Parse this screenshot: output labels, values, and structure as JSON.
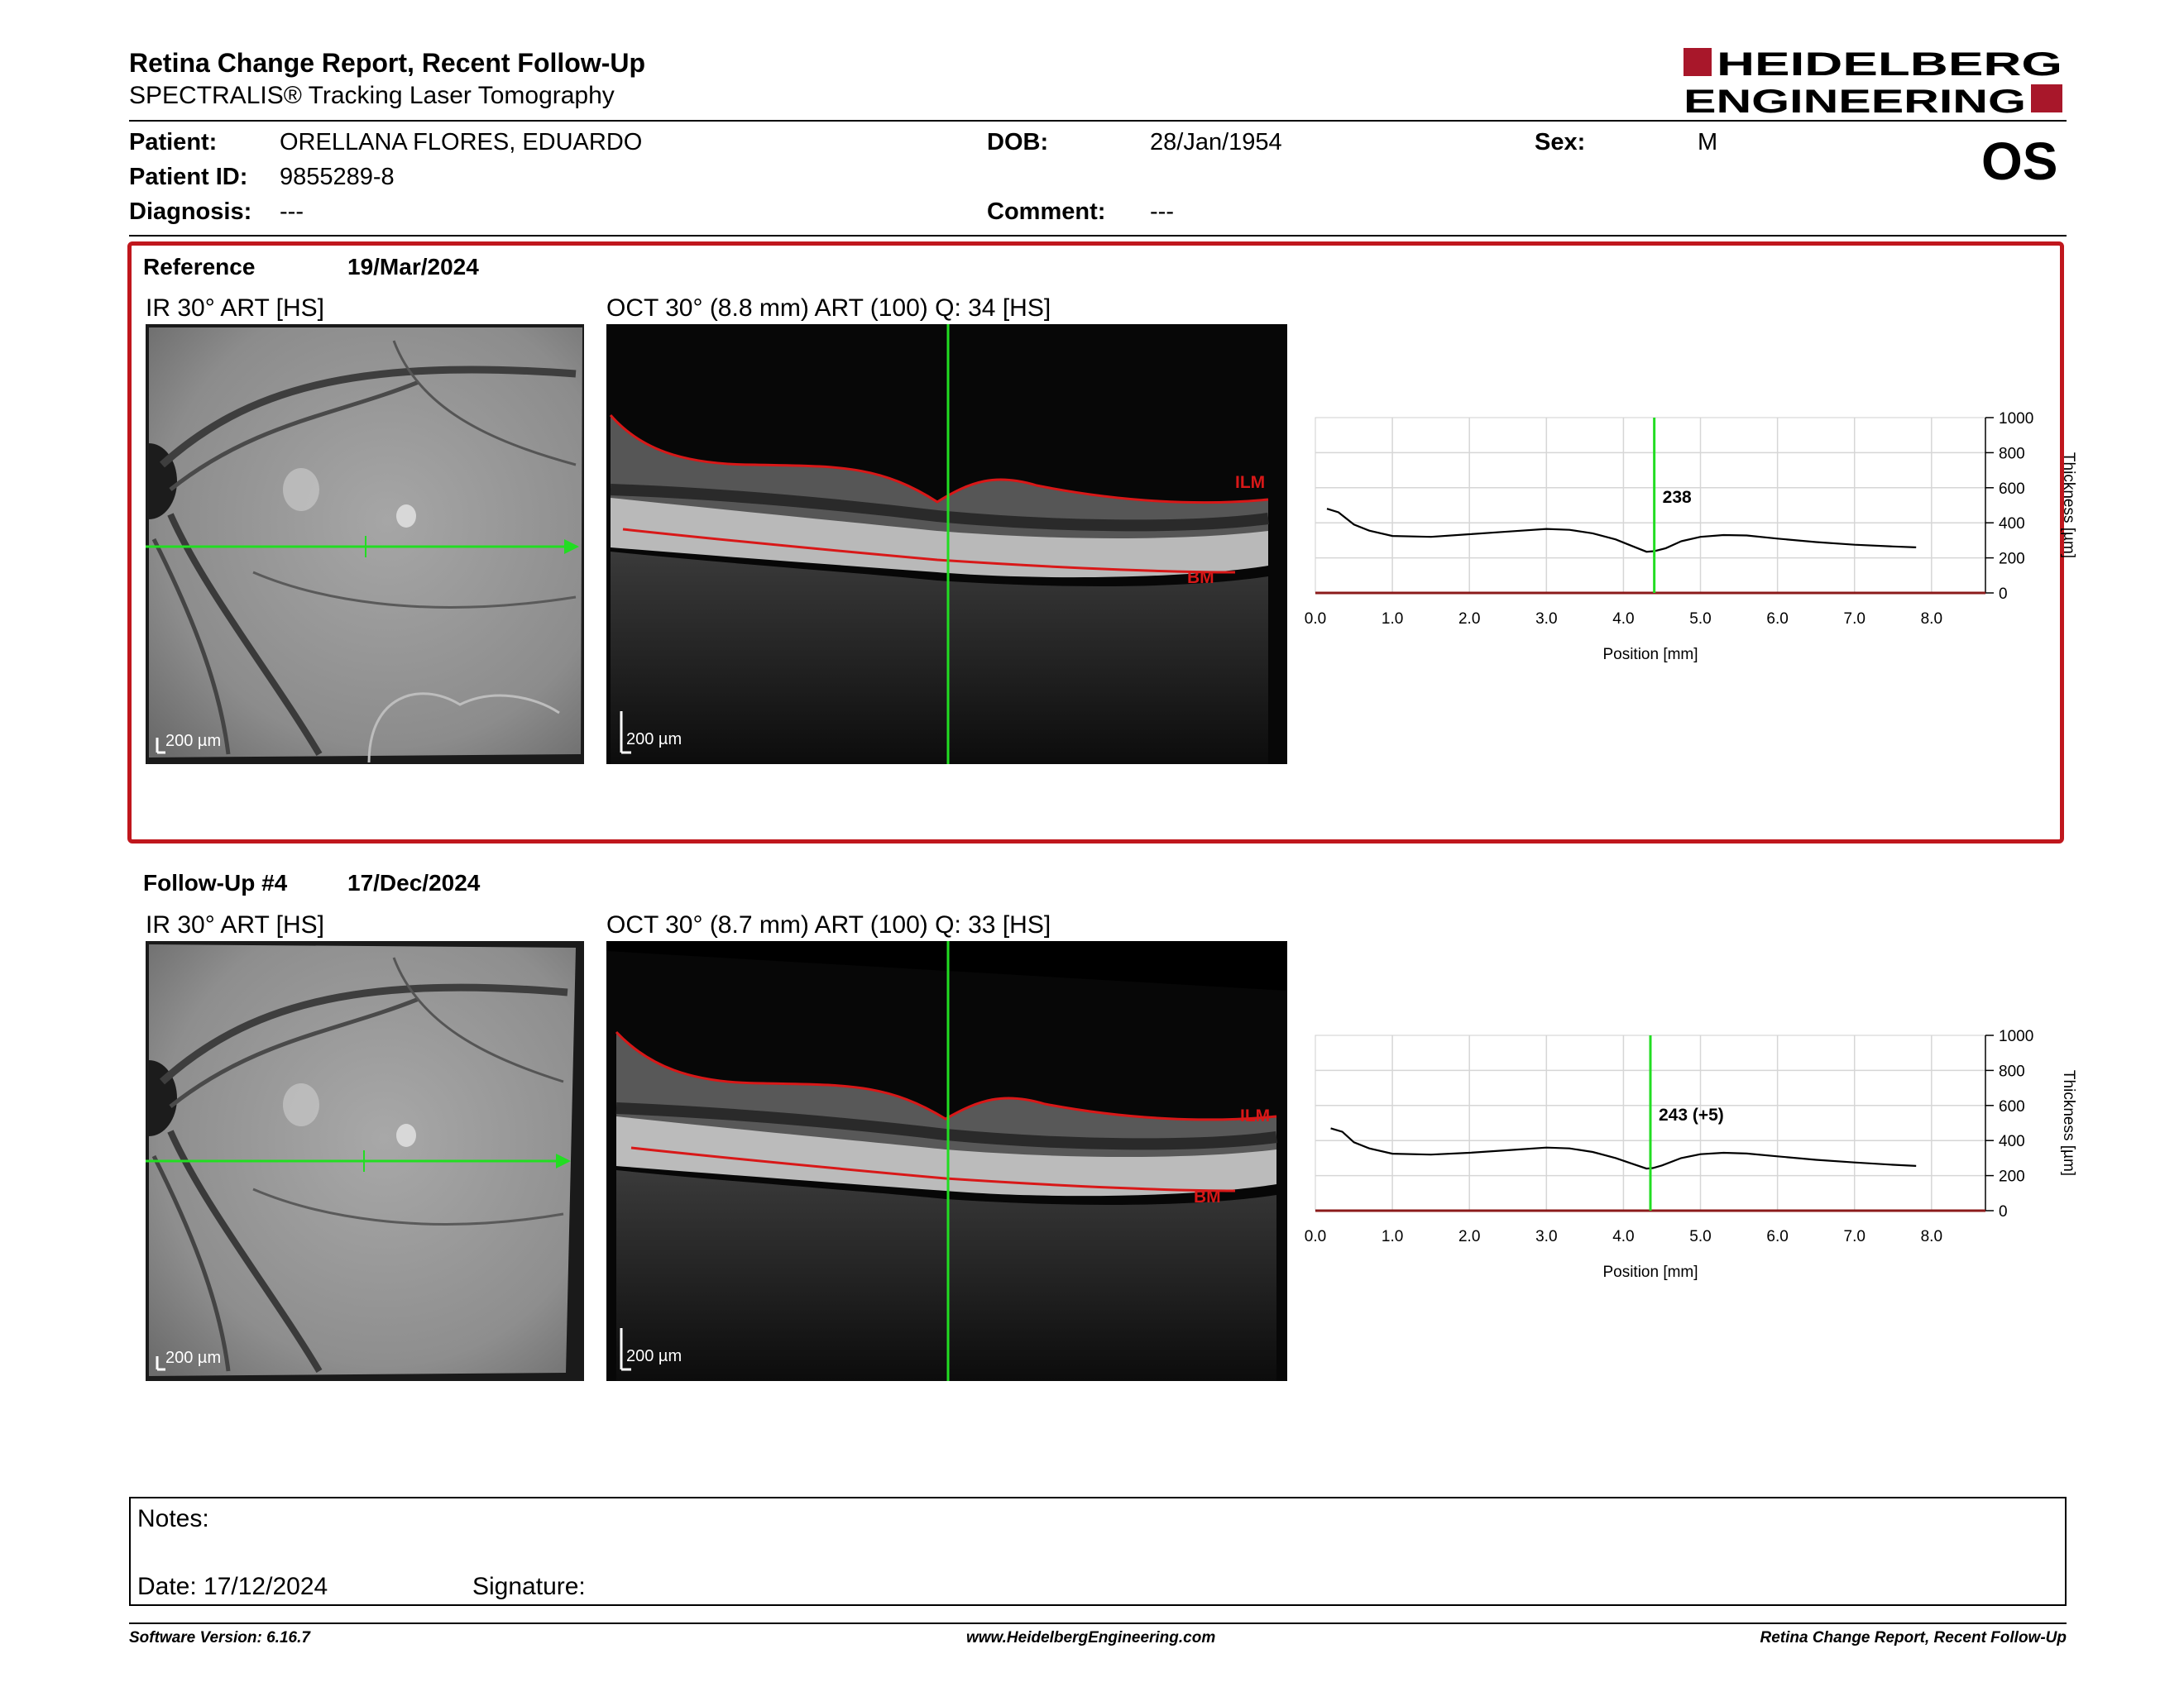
{
  "report": {
    "title": "Retina Change Report, Recent Follow-Up",
    "subtitle": "SPECTRALIS® Tracking Laser Tomography",
    "logo_line1": "HEIDELBERG",
    "logo_line2": "ENGINEERING",
    "eye": "OS"
  },
  "patient": {
    "patient_label": "Patient:",
    "patient_value": "ORELLANA FLORES, EDUARDO",
    "id_label": "Patient ID:",
    "id_value": "9855289-8",
    "diagnosis_label": "Diagnosis:",
    "diagnosis_value": "---",
    "dob_label": "DOB:",
    "dob_value": "28/Jan/1954",
    "comment_label": "Comment:",
    "comment_value": "---",
    "sex_label": "Sex:",
    "sex_value": "M"
  },
  "reference": {
    "label": "Reference",
    "date": "19/Mar/2024",
    "ir_label": "IR 30° ART [HS]",
    "oct_label": "OCT 30° (8.8 mm) ART (100) Q: 34 [HS]",
    "scale": "200 µm",
    "ilm": "ILM",
    "bm": "BM"
  },
  "followup": {
    "label": "Follow-Up #4",
    "date": "17/Dec/2024",
    "ir_label": "IR 30° ART [HS]",
    "oct_label": "OCT 30° (8.7 mm) ART (100) Q: 33 [HS]",
    "scale": "200 µm",
    "ilm": "ILM",
    "bm": "BM"
  },
  "notes": {
    "notes_label": "Notes:",
    "date_label": "Date: 17/12/2024",
    "signature_label": "Signature:"
  },
  "footer": {
    "software": "Software Version: 6.16.7",
    "website": "www.HeidelbergEngineering.com",
    "report_name": "Retina Change Report, Recent Follow-Up"
  },
  "colors": {
    "accent_red": "#c0171d",
    "cursor_green": "#22dd22",
    "segmentation_red": "#d81818"
  },
  "chart_data": [
    {
      "type": "line",
      "title": "",
      "xlabel": "Position [mm]",
      "ylabel": "Thickness [µm]",
      "xlim": [
        0,
        8.7
      ],
      "ylim": [
        0,
        1000
      ],
      "xticks": [
        "0.0",
        "1.0",
        "2.0",
        "3.0",
        "4.0",
        "5.0",
        "6.0",
        "7.0",
        "8.0"
      ],
      "yticks": [
        "0",
        "200",
        "400",
        "600",
        "800",
        "1000"
      ],
      "cursor_x": 4.4,
      "cursor_label": "238",
      "grid": true,
      "series": [
        {
          "x": [
            0.15,
            0.3,
            0.5,
            0.7,
            1.0,
            1.5,
            2.0,
            2.5,
            3.0,
            3.3,
            3.6,
            3.9,
            4.1,
            4.3,
            4.4,
            4.55,
            4.75,
            5.0,
            5.3,
            5.6,
            6.0,
            6.5,
            7.0,
            7.5,
            7.8
          ],
          "y": [
            480,
            460,
            390,
            355,
            325,
            320,
            335,
            350,
            365,
            360,
            340,
            305,
            270,
            235,
            238,
            255,
            295,
            320,
            330,
            328,
            310,
            290,
            275,
            265,
            260
          ]
        }
      ]
    },
    {
      "type": "line",
      "title": "",
      "xlabel": "Position [mm]",
      "ylabel": "Thickness [µm]",
      "xlim": [
        0,
        8.7
      ],
      "ylim": [
        0,
        1000
      ],
      "xticks": [
        "0.0",
        "1.0",
        "2.0",
        "3.0",
        "4.0",
        "5.0",
        "6.0",
        "7.0",
        "8.0"
      ],
      "yticks": [
        "0",
        "200",
        "400",
        "600",
        "800",
        "1000"
      ],
      "cursor_x": 4.35,
      "cursor_label": "243 (+5)",
      "grid": true,
      "series": [
        {
          "x": [
            0.2,
            0.35,
            0.5,
            0.7,
            1.0,
            1.5,
            2.0,
            2.5,
            3.0,
            3.3,
            3.6,
            3.9,
            4.1,
            4.3,
            4.38,
            4.5,
            4.75,
            5.0,
            5.3,
            5.6,
            6.0,
            6.5,
            7.0,
            7.5,
            7.8
          ],
          "y": [
            470,
            450,
            390,
            355,
            325,
            320,
            330,
            345,
            360,
            355,
            335,
            300,
            270,
            240,
            243,
            258,
            300,
            322,
            330,
            326,
            310,
            290,
            275,
            262,
            255
          ]
        }
      ]
    }
  ]
}
